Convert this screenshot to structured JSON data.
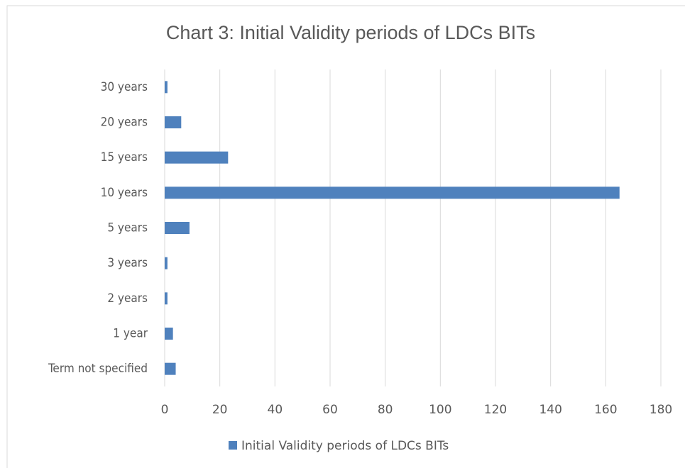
{
  "chart_data": {
    "type": "bar",
    "orientation": "horizontal",
    "title": "Chart 3: Initial Validity periods of LDCs BITs",
    "categories": [
      "30 years",
      "20 years",
      "15 years",
      "10 years",
      "5 years",
      "3 years",
      "2 years",
      "1 year",
      "Term not specified"
    ],
    "series": [
      {
        "name": "Initial Validity periods of LDCs BITs",
        "color": "#4f81bd",
        "values": [
          1,
          6,
          23,
          165,
          9,
          1,
          1,
          3,
          4
        ]
      }
    ],
    "xlim": [
      0,
      180
    ],
    "xticks": [
      0,
      20,
      40,
      60,
      80,
      100,
      120,
      140,
      160,
      180
    ],
    "grid": true,
    "legend": "bottom"
  }
}
